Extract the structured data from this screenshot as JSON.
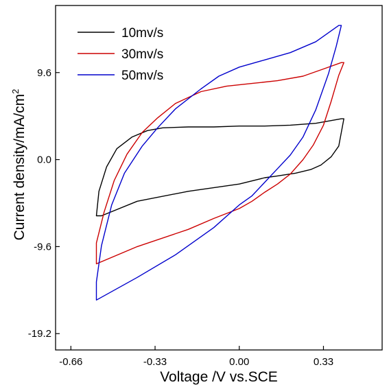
{
  "chart_data": {
    "type": "line",
    "xlabel": "Voltage /V vs.SCE",
    "ylabel_main": "Current density/mA/cm",
    "ylabel_sup": "2",
    "xlim": [
      -0.72,
      0.56
    ],
    "ylim": [
      -21.0,
      17.0
    ],
    "x_ticks": [
      {
        "value": -0.66,
        "label": "-0.66"
      },
      {
        "value": -0.33,
        "label": "-0.33"
      },
      {
        "value": 0.0,
        "label": "0.00"
      },
      {
        "value": 0.33,
        "label": "0.33"
      }
    ],
    "y_ticks": [
      {
        "value": -19.2,
        "label": "-19.2"
      },
      {
        "value": -9.6,
        "label": "-9.6"
      },
      {
        "value": 0.0,
        "label": "0.0"
      },
      {
        "value": 9.6,
        "label": "9.6"
      }
    ],
    "legend_position": "top-left",
    "series": [
      {
        "name": "10mv/s",
        "color": "#000000",
        "points": [
          [
            -0.54,
            -6.2
          ],
          [
            -0.4,
            -4.6
          ],
          [
            -0.2,
            -3.5
          ],
          [
            0.0,
            -2.7
          ],
          [
            0.1,
            -2.0
          ],
          [
            0.15,
            -1.8
          ],
          [
            0.22,
            -1.5
          ],
          [
            0.28,
            -1.1
          ],
          [
            0.32,
            -0.6
          ],
          [
            0.36,
            0.3
          ],
          [
            0.39,
            1.5
          ],
          [
            0.41,
            4.5
          ],
          [
            0.4,
            4.5
          ],
          [
            0.3,
            4.0
          ],
          [
            0.2,
            3.8
          ],
          [
            0.1,
            3.7
          ],
          [
            0.0,
            3.7
          ],
          [
            -0.1,
            3.6
          ],
          [
            -0.2,
            3.6
          ],
          [
            -0.3,
            3.5
          ],
          [
            -0.36,
            3.2
          ],
          [
            -0.42,
            2.5
          ],
          [
            -0.48,
            1.2
          ],
          [
            -0.52,
            -0.8
          ],
          [
            -0.55,
            -3.5
          ],
          [
            -0.56,
            -6.2
          ],
          [
            -0.54,
            -6.2
          ]
        ]
      },
      {
        "name": "30mv/s",
        "color": "#cc0000",
        "points": [
          [
            -0.56,
            -11.5
          ],
          [
            -0.4,
            -9.6
          ],
          [
            -0.2,
            -7.7
          ],
          [
            -0.1,
            -6.5
          ],
          [
            0.0,
            -5.4
          ],
          [
            0.05,
            -4.6
          ],
          [
            0.1,
            -3.6
          ],
          [
            0.15,
            -2.7
          ],
          [
            0.2,
            -1.6
          ],
          [
            0.25,
            0.0
          ],
          [
            0.29,
            1.6
          ],
          [
            0.33,
            3.8
          ],
          [
            0.36,
            6.4
          ],
          [
            0.39,
            9.3
          ],
          [
            0.41,
            10.7
          ],
          [
            0.4,
            10.7
          ],
          [
            0.33,
            10.0
          ],
          [
            0.25,
            9.2
          ],
          [
            0.15,
            8.7
          ],
          [
            0.05,
            8.4
          ],
          [
            -0.05,
            8.1
          ],
          [
            -0.15,
            7.5
          ],
          [
            -0.25,
            6.2
          ],
          [
            -0.32,
            4.6
          ],
          [
            -0.38,
            3.0
          ],
          [
            -0.44,
            0.6
          ],
          [
            -0.49,
            -2.3
          ],
          [
            -0.53,
            -5.8
          ],
          [
            -0.56,
            -9.2
          ],
          [
            -0.56,
            -11.5
          ]
        ]
      },
      {
        "name": "50mv/s",
        "color": "#0000cc",
        "points": [
          [
            -0.56,
            -15.5
          ],
          [
            -0.4,
            -13.0
          ],
          [
            -0.25,
            -10.5
          ],
          [
            -0.1,
            -7.5
          ],
          [
            0.0,
            -5.0
          ],
          [
            0.05,
            -4.0
          ],
          [
            0.1,
            -2.5
          ],
          [
            0.15,
            -1.0
          ],
          [
            0.2,
            0.5
          ],
          [
            0.25,
            2.5
          ],
          [
            0.3,
            5.5
          ],
          [
            0.35,
            9.5
          ],
          [
            0.38,
            12.5
          ],
          [
            0.4,
            14.8
          ],
          [
            0.39,
            14.8
          ],
          [
            0.3,
            13.0
          ],
          [
            0.2,
            11.8
          ],
          [
            0.1,
            11.0
          ],
          [
            0.0,
            10.2
          ],
          [
            -0.08,
            9.2
          ],
          [
            -0.15,
            7.8
          ],
          [
            -0.25,
            5.6
          ],
          [
            -0.32,
            3.5
          ],
          [
            -0.38,
            1.5
          ],
          [
            -0.45,
            -1.5
          ],
          [
            -0.5,
            -5.0
          ],
          [
            -0.54,
            -9.5
          ],
          [
            -0.56,
            -13.5
          ],
          [
            -0.56,
            -15.5
          ]
        ]
      }
    ]
  }
}
